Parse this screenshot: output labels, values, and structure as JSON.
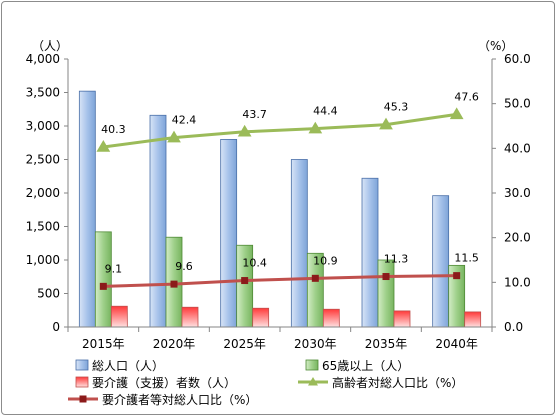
{
  "chart_data": {
    "type": "bar",
    "title": "",
    "y_left_unit": "（人）",
    "y_right_unit": "（%）",
    "categories": [
      "2015年",
      "2020年",
      "2025年",
      "2030年",
      "2035年",
      "2040年"
    ],
    "ylim_left": [
      0,
      4000
    ],
    "yticks_left": [
      "0",
      "500",
      "1,000",
      "1,500",
      "2,000",
      "2,500",
      "3,000",
      "3,500",
      "4,000"
    ],
    "ylim_right": [
      0,
      60
    ],
    "yticks_right": [
      "0.0",
      "10.0",
      "20.0",
      "30.0",
      "40.0",
      "50.0",
      "60.0"
    ],
    "grid": false,
    "legend_position": "bottom",
    "series": [
      {
        "name": "総人口（人）",
        "type": "bar",
        "axis": "left",
        "color": "#a9c4ec",
        "values": [
          3520,
          3160,
          2800,
          2500,
          2220,
          1960
        ]
      },
      {
        "name": "65歳以上（人）",
        "type": "bar",
        "axis": "left",
        "color": "#9fd08a",
        "values": [
          1420,
          1340,
          1220,
          1100,
          1000,
          920
        ]
      },
      {
        "name": "要介護（支援）者数（人）",
        "type": "bar",
        "axis": "left",
        "color": "#ff5a5a",
        "values": [
          310,
          295,
          280,
          265,
          240,
          225
        ]
      },
      {
        "name": "高齢者対総人口比（%）",
        "type": "line",
        "axis": "right",
        "color": "#9bbb59",
        "marker": "triangle",
        "values": [
          40.3,
          42.4,
          43.7,
          44.4,
          45.3,
          47.6
        ],
        "labels": [
          "40.3",
          "42.4",
          "43.7",
          "44.4",
          "45.3",
          "47.6"
        ]
      },
      {
        "name": "要介護者等対総人口比（%）",
        "type": "line",
        "axis": "right",
        "color": "#c0504d",
        "marker": "square",
        "marker_color": "#8b1a1a",
        "values": [
          9.1,
          9.6,
          10.4,
          10.9,
          11.3,
          11.5
        ],
        "labels": [
          "9.1",
          "9.6",
          "10.4",
          "10.9",
          "11.3",
          "11.5"
        ]
      }
    ]
  }
}
